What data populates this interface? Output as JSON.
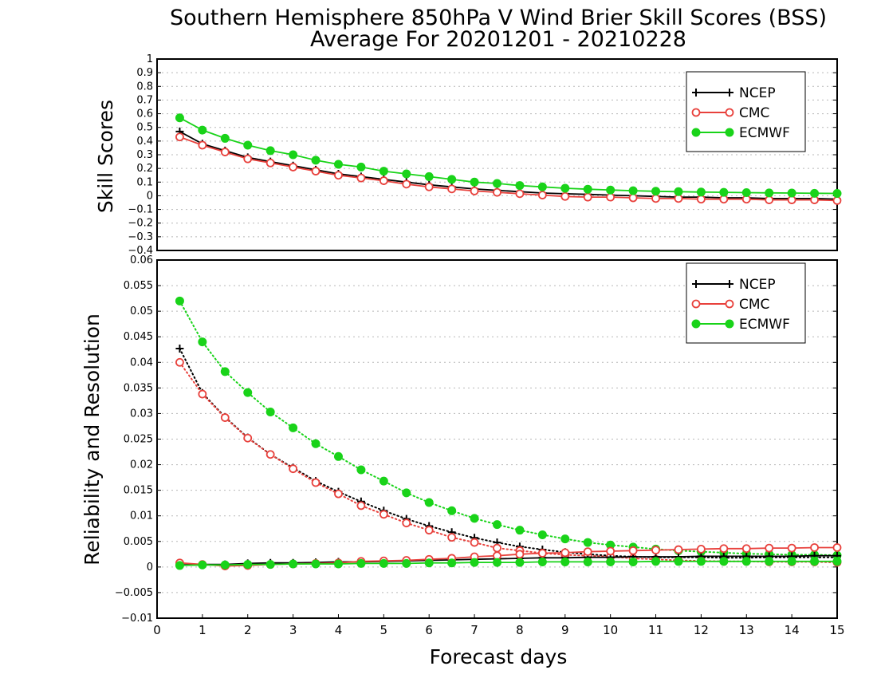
{
  "title": {
    "line1": "Southern Hemisphere 850hPa V Wind Brier Skill Scores (BSS)",
    "line2": "Average For 20201201 - 20210228"
  },
  "xlabel": "Forecast days",
  "colors": {
    "NCEP": "#000000",
    "CMC": "#e8413c",
    "ECMWF": "#19d319"
  },
  "chart_data": [
    {
      "type": "line",
      "ylabel": "Skill Scores",
      "xlim": [
        0,
        15
      ],
      "ylim": [
        -0.4,
        1
      ],
      "xticks": [
        "0",
        "1",
        "2",
        "3",
        "4",
        "5",
        "6",
        "7",
        "8",
        "9",
        "10",
        "11",
        "12",
        "13",
        "14",
        "15"
      ],
      "yticks": [
        "−0.4",
        "−0.3",
        "−0.2",
        "−0.1",
        "0",
        "0.1",
        "0.2",
        "0.3",
        "0.4",
        "0.5",
        "0.6",
        "0.7",
        "0.8",
        "0.9",
        "1"
      ],
      "grid": true,
      "legend_position": "top-right",
      "x": [
        0.5,
        1,
        1.5,
        2,
        2.5,
        3,
        3.5,
        4,
        4.5,
        5,
        5.5,
        6,
        6.5,
        7,
        7.5,
        8,
        8.5,
        9,
        9.5,
        10,
        10.5,
        11,
        11.5,
        12,
        12.5,
        13,
        13.5,
        14,
        14.5,
        15
      ],
      "series": [
        {
          "name": "NCEP",
          "marker": "plus",
          "line": "solid",
          "values": [
            0.47,
            0.38,
            0.33,
            0.28,
            0.25,
            0.22,
            0.19,
            0.16,
            0.14,
            0.12,
            0.1,
            0.08,
            0.065,
            0.05,
            0.04,
            0.03,
            0.02,
            0.015,
            0.01,
            0.005,
            0,
            -0.005,
            -0.01,
            -0.01,
            -0.015,
            -0.015,
            -0.02,
            -0.02,
            -0.02,
            -0.025
          ]
        },
        {
          "name": "CMC",
          "marker": "open-circle",
          "line": "solid",
          "values": [
            0.43,
            0.37,
            0.32,
            0.27,
            0.24,
            0.21,
            0.18,
            0.15,
            0.13,
            0.11,
            0.085,
            0.065,
            0.05,
            0.035,
            0.025,
            0.015,
            0.005,
            -0.005,
            -0.01,
            -0.01,
            -0.015,
            -0.02,
            -0.02,
            -0.025,
            -0.025,
            -0.025,
            -0.03,
            -0.03,
            -0.03,
            -0.035
          ]
        },
        {
          "name": "ECMWF",
          "marker": "filled-circle",
          "line": "solid",
          "values": [
            0.57,
            0.48,
            0.42,
            0.37,
            0.33,
            0.3,
            0.26,
            0.23,
            0.21,
            0.18,
            0.16,
            0.14,
            0.12,
            0.1,
            0.09,
            0.075,
            0.065,
            0.055,
            0.048,
            0.042,
            0.037,
            0.033,
            0.03,
            0.027,
            0.025,
            0.023,
            0.021,
            0.02,
            0.018,
            0.017
          ]
        }
      ]
    },
    {
      "type": "line",
      "ylabel": "Reliability and Resolution",
      "xlim": [
        0,
        15
      ],
      "ylim": [
        -0.01,
        0.06
      ],
      "xticks": [
        "0",
        "1",
        "2",
        "3",
        "4",
        "5",
        "6",
        "7",
        "8",
        "9",
        "10",
        "11",
        "12",
        "13",
        "14",
        "15"
      ],
      "yticks": [
        "−0.01",
        "−0.005",
        "0",
        "0.005",
        "0.01",
        "0.015",
        "0.02",
        "0.025",
        "0.03",
        "0.035",
        "0.04",
        "0.045",
        "0.05",
        "0.055",
        "0.06"
      ],
      "grid": true,
      "legend_position": "top-right",
      "x": [
        0.5,
        1,
        1.5,
        2,
        2.5,
        3,
        3.5,
        4,
        4.5,
        5,
        5.5,
        6,
        6.5,
        7,
        7.5,
        8,
        8.5,
        9,
        9.5,
        10,
        10.5,
        11,
        11.5,
        12,
        12.5,
        13,
        13.5,
        14,
        14.5,
        15
      ],
      "series": [
        {
          "name": "NCEP",
          "group": "resolution",
          "marker": "plus",
          "line": "dotted",
          "values": [
            0.0427,
            0.034,
            0.0293,
            0.0253,
            0.022,
            0.0194,
            0.0168,
            0.0147,
            0.0128,
            0.011,
            0.0094,
            0.008,
            0.0068,
            0.0057,
            0.0048,
            0.004,
            0.0034,
            0.0029,
            0.0025,
            0.0022,
            0.002,
            0.0019,
            0.0019,
            0.0019,
            0.0018,
            0.0018,
            0.0019,
            0.0019,
            0.0019,
            0.0019
          ]
        },
        {
          "name": "CMC",
          "group": "resolution",
          "marker": "open-circle",
          "line": "dotted",
          "values": [
            0.04,
            0.0338,
            0.0292,
            0.0252,
            0.022,
            0.0192,
            0.0165,
            0.0143,
            0.012,
            0.0103,
            0.0086,
            0.0072,
            0.0058,
            0.0048,
            0.0037,
            0.0032,
            0.0027,
            0.0024,
            0.0022,
            0.002,
            0.0017,
            0.0015,
            0.0013,
            0.0012,
            0.0011,
            0.0011,
            0.001,
            0.001,
            0.001,
            0.0009
          ]
        },
        {
          "name": "ECMWF",
          "group": "resolution",
          "marker": "filled-circle",
          "line": "dotted",
          "values": [
            0.052,
            0.044,
            0.0382,
            0.0341,
            0.0303,
            0.0272,
            0.0241,
            0.0216,
            0.019,
            0.0168,
            0.0145,
            0.0126,
            0.011,
            0.0095,
            0.0083,
            0.0072,
            0.0063,
            0.0055,
            0.0048,
            0.0043,
            0.0039,
            0.0035,
            0.0032,
            0.003,
            0.0028,
            0.0026,
            0.0025,
            0.0024,
            0.0024,
            0.0023
          ]
        },
        {
          "name": "NCEP",
          "group": "reliability",
          "marker": "plus",
          "line": "solid",
          "values": [
            0.0004,
            0.0005,
            0.0005,
            0.0007,
            0.0008,
            0.0008,
            0.0009,
            0.001,
            0.001,
            0.0011,
            0.0012,
            0.0013,
            0.0014,
            0.0015,
            0.0016,
            0.0017,
            0.0018,
            0.0018,
            0.0019,
            0.0019,
            0.002,
            0.002,
            0.002,
            0.0021,
            0.0021,
            0.0021,
            0.0021,
            0.0021,
            0.0022,
            0.0022
          ]
        },
        {
          "name": "CMC",
          "group": "reliability",
          "marker": "open-circle",
          "line": "solid",
          "values": [
            0.0008,
            0.0005,
            0.0002,
            0.0003,
            0.0005,
            0.0006,
            0.0007,
            0.0008,
            0.0011,
            0.0012,
            0.0013,
            0.0015,
            0.0017,
            0.002,
            0.0022,
            0.0025,
            0.0027,
            0.0028,
            0.003,
            0.0031,
            0.0032,
            0.0033,
            0.0034,
            0.0035,
            0.0036,
            0.0036,
            0.0037,
            0.0037,
            0.0038,
            0.0038
          ]
        },
        {
          "name": "ECMWF",
          "group": "reliability",
          "marker": "filled-circle",
          "line": "solid",
          "values": [
            0.0003,
            0.0004,
            0.0004,
            0.0005,
            0.0005,
            0.0006,
            0.0006,
            0.0006,
            0.0007,
            0.0007,
            0.0007,
            0.0008,
            0.0008,
            0.0009,
            0.0009,
            0.0009,
            0.001,
            0.001,
            0.001,
            0.001,
            0.001,
            0.0011,
            0.0011,
            0.0011,
            0.0011,
            0.0011,
            0.0011,
            0.0011,
            0.0011,
            0.0011
          ]
        }
      ]
    }
  ]
}
